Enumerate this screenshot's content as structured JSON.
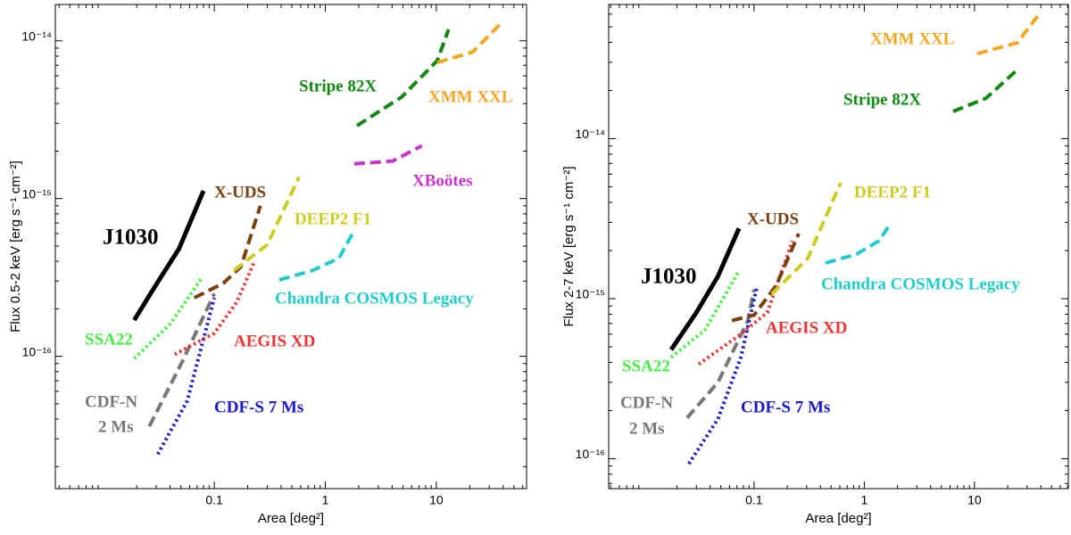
{
  "chart_data": [
    {
      "type": "line",
      "log_x": true,
      "log_y": true,
      "xlabel": "Area [deg²]",
      "ylabel": "Flux 0.5-2 keV [erg s⁻¹ cm⁻²]",
      "xlim": [
        0.0037,
        65
      ],
      "ylim": [
        1.45e-17,
        1.7e-14
      ],
      "xticks": [
        0.1,
        1,
        10
      ],
      "yticks": [
        {
          "value": 1e-16,
          "label": "10⁻¹⁶"
        },
        {
          "value": 1e-15,
          "label": "10⁻¹⁵"
        },
        {
          "value": 1e-14,
          "label": "10⁻¹⁴"
        }
      ],
      "series": [
        {
          "name": "J1030",
          "color": "#000000",
          "dash": "solid",
          "x": [
            0.019,
            0.03,
            0.048,
            0.08
          ],
          "values": [
            1.7e-16,
            2.86e-16,
            4.8e-16,
            1.12e-15
          ]
        },
        {
          "name": "SSA22",
          "color": "#44ee44",
          "dash": "dotted",
          "x": [
            0.019,
            0.04,
            0.076
          ],
          "values": [
            9.7e-17,
            1.6e-16,
            3.1e-16
          ]
        },
        {
          "name": [
            "CDF-N",
            "2 Ms"
          ],
          "color": "#777777",
          "dash": "dashed",
          "x": [
            0.026,
            0.052,
            0.1
          ],
          "values": [
            3.6e-17,
            9.4e-17,
            2.5e-16
          ]
        },
        {
          "name": "CDF-S 7 Ms",
          "color": "#1a1acc",
          "dash": "dotted",
          "x": [
            0.031,
            0.057,
            0.1
          ],
          "values": [
            2.4e-17,
            5.2e-17,
            2.35e-16
          ]
        },
        {
          "name": "AEGIS XD",
          "color": "#ee3333",
          "dash": "dotted",
          "x": [
            0.044,
            0.1,
            0.159,
            0.23
          ],
          "values": [
            1.03e-16,
            1.4e-16,
            2.2e-16,
            4e-16
          ]
        },
        {
          "name": "X-UDS",
          "color": "#7a3f0f",
          "dash": "dashed",
          "x": [
            0.066,
            0.12,
            0.174,
            0.26
          ],
          "values": [
            2.35e-16,
            2.9e-16,
            3.7e-16,
            9e-16
          ]
        },
        {
          "name": "DEEP2 F1",
          "color": "#cccc22",
          "dash": "dashed",
          "x": [
            0.15,
            0.3,
            0.58
          ],
          "values": [
            3.5e-16,
            5.1e-16,
            1.37e-15
          ]
        },
        {
          "name": "Chandra COSMOS Legacy",
          "color": "#22cccc",
          "dash": "dashed",
          "x": [
            0.385,
            0.766,
            1.33,
            1.76
          ],
          "values": [
            3.05e-16,
            3.5e-16,
            4.2e-16,
            6e-16
          ]
        },
        {
          "name": "XBoötes",
          "color": "#cc33cc",
          "dash": "dashed",
          "x": [
            1.82,
            4.04,
            7.4
          ],
          "values": [
            1.66e-15,
            1.73e-15,
            2.16e-15
          ]
        },
        {
          "name": "Stripe 82X",
          "color": "#118811",
          "dash": "dashed",
          "x": [
            1.93,
            4.86,
            10.2,
            12.9
          ],
          "values": [
            2.9e-15,
            4.4e-15,
            7.5e-15,
            1.18e-14
          ]
        },
        {
          "name": "XMM XXL",
          "color": "#f5a623",
          "dash": "dashed",
          "x": [
            10.2,
            21.3,
            37
          ],
          "values": [
            7.3e-15,
            8.5e-15,
            1.26e-14
          ]
        }
      ]
    },
    {
      "type": "line",
      "log_x": true,
      "log_y": true,
      "xlabel": "Area [deg²]",
      "ylabel": "Flux 2-7 keV [erg s⁻¹ cm⁻²]",
      "xlim": [
        0.0048,
        71
      ],
      "ylim": [
        6.5e-17,
        6.9e-14
      ],
      "xticks": [
        0.1,
        1,
        10
      ],
      "yticks": [
        {
          "value": 1e-16,
          "label": "10⁻¹⁶"
        },
        {
          "value": 1e-15,
          "label": "10⁻¹⁵"
        },
        {
          "value": 1e-14,
          "label": "10⁻¹⁴"
        }
      ],
      "series": [
        {
          "name": "J1030",
          "color": "#000000",
          "dash": "solid",
          "x": [
            0.0177,
            0.03,
            0.047,
            0.073
          ],
          "values": [
            4.8e-16,
            8.2e-16,
            1.38e-15,
            2.75e-15
          ]
        },
        {
          "name": "SSA22",
          "color": "#44ee44",
          "dash": "dotted",
          "x": [
            0.0177,
            0.036,
            0.072
          ],
          "values": [
            4.3e-16,
            6.4e-16,
            1.47e-15
          ]
        },
        {
          "name": [
            "CDF-N",
            "2 Ms"
          ],
          "color": "#777777",
          "dash": "dashed",
          "x": [
            0.0247,
            0.047,
            0.088,
            0.1
          ],
          "values": [
            1.8e-16,
            3e-16,
            7.3e-16,
            1.14e-15
          ]
        },
        {
          "name": "CDF-S 7 Ms",
          "color": "#1a1acc",
          "dash": "dotted",
          "x": [
            0.0256,
            0.047,
            0.076,
            0.106
          ],
          "values": [
            9.3e-17,
            1.77e-16,
            4.3e-16,
            1.18e-15
          ]
        },
        {
          "name": "AEGIS XD",
          "color": "#ee3333",
          "dash": "dotted",
          "x": [
            0.0315,
            0.076,
            0.132,
            0.223
          ],
          "values": [
            3.9e-16,
            6e-16,
            8.2e-16,
            2.3e-15
          ]
        },
        {
          "name": "X-UDS",
          "color": "#7a3f0f",
          "dash": "dashed",
          "x": [
            0.063,
            0.1,
            0.159,
            0.254
          ],
          "values": [
            7.3e-16,
            7.9e-16,
            1.21e-15,
            2.55e-15
          ]
        },
        {
          "name": "DEEP2 F1",
          "color": "#cccc22",
          "dash": "dashed",
          "x": [
            0.145,
            0.306,
            0.61
          ],
          "values": [
            1.07e-15,
            1.78e-15,
            5.3e-15
          ]
        },
        {
          "name": "Chandra COSMOS Legacy",
          "color": "#22cccc",
          "dash": "dashed",
          "x": [
            0.444,
            0.85,
            1.36,
            1.7
          ],
          "values": [
            1.67e-15,
            1.9e-15,
            2.3e-15,
            2.9e-15
          ]
        },
        {
          "name": "Stripe 82X",
          "color": "#118811",
          "dash": "dashed",
          "x": [
            6.4,
            12.7,
            23.5
          ],
          "values": [
            1.48e-14,
            1.79e-14,
            2.63e-14
          ]
        },
        {
          "name": "XMM XXL",
          "color": "#f5a623",
          "dash": "dashed",
          "x": [
            10.6,
            24.4,
            39
          ],
          "values": [
            3.4e-14,
            3.97e-14,
            6.06e-14
          ]
        }
      ]
    }
  ]
}
